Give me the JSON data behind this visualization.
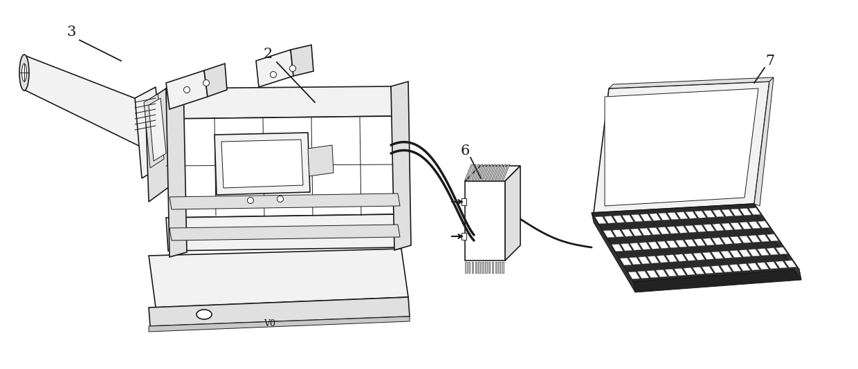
{
  "background_color": "#ffffff",
  "line_color": "#1a1a1a",
  "label_3": "3",
  "label_2": "2",
  "label_6": "6",
  "label_7": "7",
  "figsize": [
    12.4,
    5.34
  ],
  "dpi": 100,
  "lw_main": 1.2,
  "lw_thin": 0.7,
  "lw_thick": 1.8
}
